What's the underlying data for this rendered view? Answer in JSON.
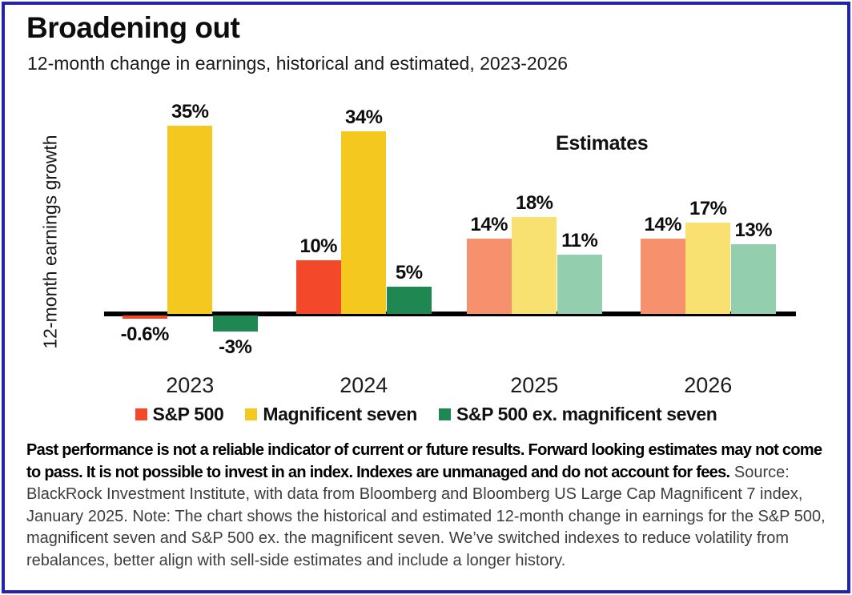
{
  "header": {
    "title": "Broadening out",
    "subtitle": "12-month change in earnings, historical and estimated, 2023-2026"
  },
  "chart_data": {
    "type": "bar",
    "title": "Broadening out",
    "subtitle": "12-month change in earnings, historical and estimated, 2023-2026",
    "ylabel": "12-month earnings growth",
    "xlabel": "",
    "categories": [
      "2023",
      "2024",
      "2025",
      "2026"
    ],
    "series": [
      {
        "name": "S&P 500",
        "color": "#F4482B",
        "estimate_color": "#F7906C",
        "values": [
          -0.6,
          10,
          14,
          14
        ],
        "labels": [
          "-0.6%",
          "10%",
          "14%",
          "14%"
        ]
      },
      {
        "name": "Magnificent seven",
        "color": "#F4C81E",
        "estimate_color": "#F8E170",
        "values": [
          35,
          34,
          18,
          17
        ],
        "labels": [
          "35%",
          "34%",
          "18%",
          "17%"
        ]
      },
      {
        "name": "S&P 500 ex. magnificent seven",
        "color": "#1E8752",
        "estimate_color": "#93CEAE",
        "values": [
          -3,
          5,
          11,
          13
        ],
        "labels": [
          "-3%",
          "5%",
          "11%",
          "13%"
        ]
      }
    ],
    "estimate_categories": [
      "2025",
      "2026"
    ],
    "estimates_label": "Estimates",
    "legend_position": "bottom",
    "grid": false,
    "baseline_value": 0
  },
  "colors": {
    "border": "#2323A8",
    "axis": "#000000"
  },
  "footer": {
    "disclaimer_bold": "Past performance is not a reliable indicator of current or future results. Forward looking estimates may not come to pass. It is not possible to invest in an index. Indexes are unmanaged and do not account for fees.",
    "source_text": " Source: BlackRock Investment Institute, with data from Bloomberg and Bloomberg US Large Cap Magnificent 7 index, January 2025. Note: The chart shows the historical and estimated 12-month change in earnings for the S&P 500, magnificent seven and S&P 500 ex. the magnificent seven. We’ve switched indexes to reduce volatility from rebalances, better align with sell-side estimates and include a longer history."
  }
}
